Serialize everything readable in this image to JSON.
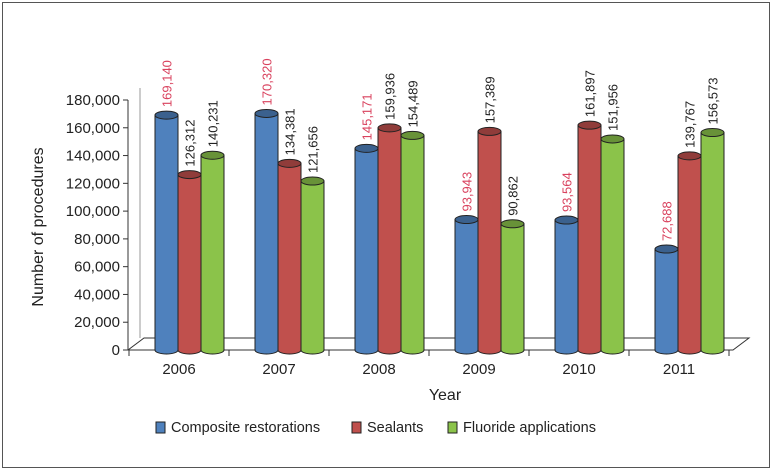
{
  "chart_data": {
    "type": "bar",
    "title": "",
    "xlabel": "Year",
    "ylabel": "Number of procedures",
    "categories": [
      "2006",
      "2007",
      "2008",
      "2009",
      "2010",
      "2011"
    ],
    "ylim": [
      0,
      180000
    ],
    "yticks": [
      "0",
      "20,000",
      "40,000",
      "60,000",
      "80,000",
      "100,000",
      "120,000",
      "140,000",
      "160,000",
      "180,000"
    ],
    "grid": false,
    "legend_position": "bottom",
    "series": [
      {
        "name": "Composite restorations",
        "color": "#4f81bd",
        "label_color": "#d9425e",
        "values": [
          169140,
          170320,
          145171,
          93943,
          93564,
          72688
        ],
        "labels": [
          "169,140",
          "170,320",
          "145,171",
          "93,943",
          "93,564",
          "72,688"
        ]
      },
      {
        "name": "Sealants",
        "color": "#c0504d",
        "label_color": "#222222",
        "values": [
          126312,
          134381,
          159936,
          157389,
          161897,
          139767
        ],
        "labels": [
          "126,312",
          "134,381",
          "159,936",
          "157,389",
          "161,897",
          "139,767"
        ]
      },
      {
        "name": "Fluoride applications",
        "color": "#8bc34a",
        "label_color": "#222222",
        "values": [
          140231,
          121656,
          154489,
          90862,
          151956,
          156573
        ],
        "labels": [
          "140,231",
          "121,656",
          "154,489",
          "90,862",
          "151,956",
          "156,573"
        ]
      }
    ]
  }
}
